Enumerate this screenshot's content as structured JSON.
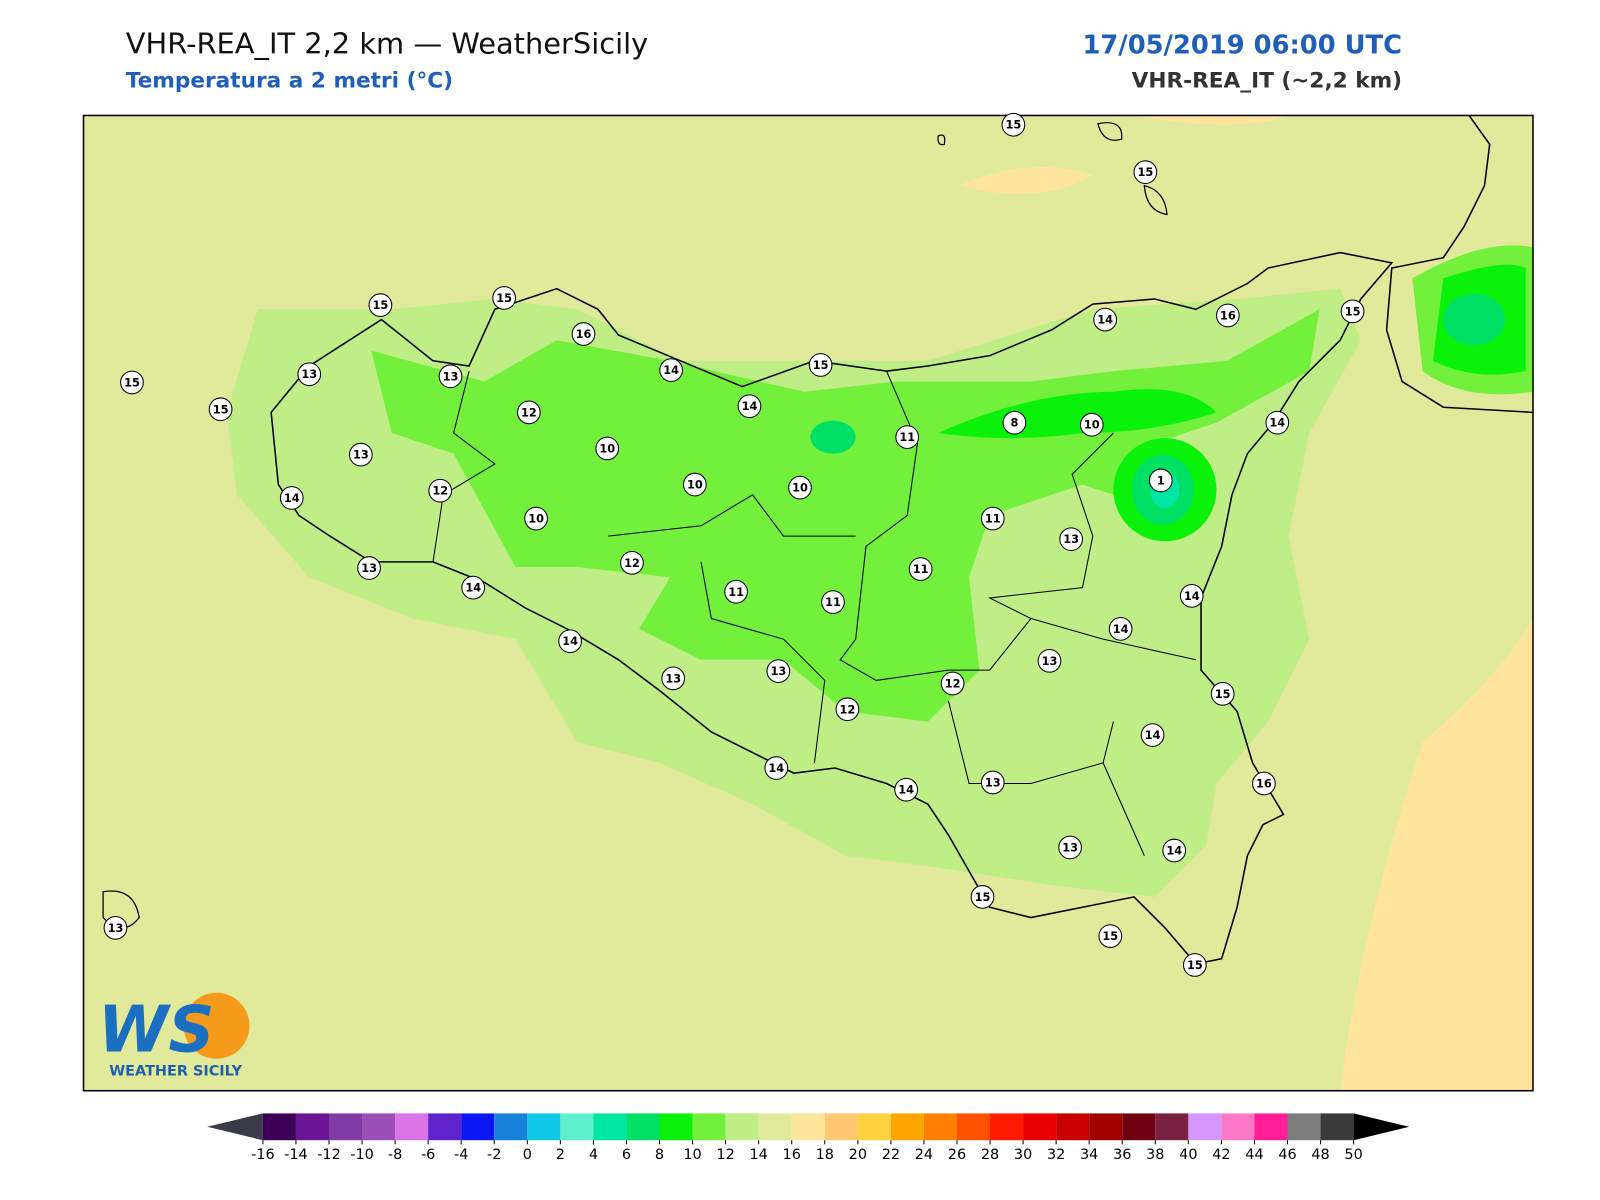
{
  "header": {
    "title": "VHR-REA_IT 2,2 km — WeatherSicily",
    "subtitle": "Temperatura a 2 metri (°C)",
    "date": "17/05/2019 06:00 UTC",
    "model": "VHR-REA_IT (~2,2 km)"
  },
  "logo": {
    "mark": "WS",
    "text": "WEATHER SICILY"
  },
  "stations": [
    15,
    15,
    15,
    15,
    16,
    15,
    13,
    13,
    15,
    14,
    15,
    14,
    16,
    15,
    12,
    14,
    13,
    10,
    11,
    8,
    10,
    14,
    12,
    10,
    10,
    1,
    14,
    10,
    11,
    13,
    13,
    12,
    11,
    14,
    11,
    11,
    14,
    14,
    14,
    13,
    13,
    13,
    12,
    15,
    12,
    14,
    14,
    14,
    13,
    16,
    13,
    14,
    15,
    15,
    15,
    13
  ],
  "colorbar": {
    "ticks": [
      -16,
      -14,
      -12,
      -10,
      -8,
      -6,
      -4,
      -2,
      0,
      2,
      4,
      6,
      8,
      10,
      12,
      14,
      16,
      18,
      20,
      22,
      24,
      26,
      28,
      30,
      32,
      34,
      36,
      38,
      40,
      42,
      44,
      46,
      48,
      50
    ],
    "colors": [
      "#3d0059",
      "#6a1594",
      "#7f3aa6",
      "#9b4db8",
      "#db73e8",
      "#5d22c9",
      "#0a17f2",
      "#1782d9",
      "#0fc7e6",
      "#5ef0cc",
      "#00e6a3",
      "#00e065",
      "#0af20a",
      "#73f03c",
      "#bfee86",
      "#e1e99b",
      "#ffe59c",
      "#ffc870",
      "#ffd040",
      "#ffa500",
      "#ff7f00",
      "#ff5200",
      "#ff1a00",
      "#e60000",
      "#c80000",
      "#a00000",
      "#6e0010",
      "#7a2040",
      "#d596ff",
      "#ff78c8",
      "#ff1e96",
      "#7d7d7d",
      "#3a3a3a"
    ]
  }
}
